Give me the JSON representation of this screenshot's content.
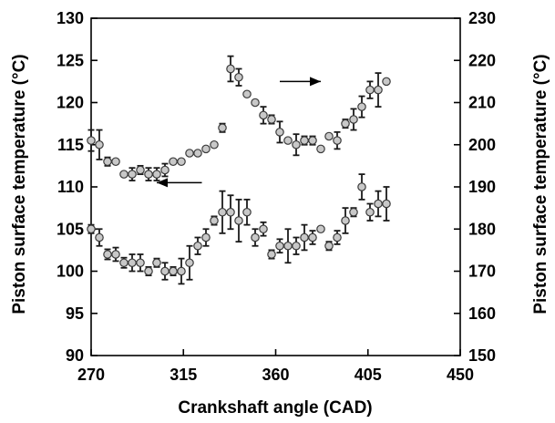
{
  "chart_data": {
    "type": "scatter",
    "title": "",
    "xlabel": "Crankshaft angle (CAD)",
    "ylabel_left": "Piston surface temperature (°C)",
    "ylabel_right": "Piston surface temperature (°C)",
    "xlim": [
      270,
      450
    ],
    "ylim_left": [
      90,
      130
    ],
    "ylim_right": [
      150,
      230
    ],
    "x_ticks": [
      "270",
      "315",
      "360",
      "405",
      "450"
    ],
    "y_ticks_left": [
      "90",
      "95",
      "100",
      "105",
      "110",
      "115",
      "120",
      "125",
      "130"
    ],
    "y_ticks_right": [
      "150",
      "160",
      "170",
      "180",
      "190",
      "200",
      "210",
      "220",
      "230"
    ],
    "grid": false,
    "marker": "circle",
    "colors": {
      "marker_fill": "#c8c8c8",
      "marker_edge": "#3a3a3a",
      "axis": "#000000",
      "errorbar": "#1a1a1a"
    },
    "annotations": [
      {
        "type": "arrow",
        "direction": "left",
        "axis": "left",
        "from": [
          324,
          110.5
        ],
        "to": [
          302,
          110.5
        ]
      },
      {
        "type": "arrow",
        "direction": "right",
        "axis": "right",
        "from": [
          362,
          215
        ],
        "to": [
          382,
          215
        ]
      }
    ],
    "series": [
      {
        "axis": "left",
        "points": [
          {
            "x": 270,
            "y": 105.0,
            "err": 0.5
          },
          {
            "x": 274,
            "y": 104.0,
            "err": 1.0
          },
          {
            "x": 278,
            "y": 102.0,
            "err": 0.6
          },
          {
            "x": 282,
            "y": 102.0,
            "err": 0.8
          },
          {
            "x": 286,
            "y": 101.0,
            "err": 0.6
          },
          {
            "x": 290,
            "y": 101.0,
            "err": 1.0
          },
          {
            "x": 294,
            "y": 101.0,
            "err": 1.0
          },
          {
            "x": 298,
            "y": 100.0,
            "err": 0.5
          },
          {
            "x": 302,
            "y": 101.0,
            "err": 0.5
          },
          {
            "x": 306,
            "y": 100.0,
            "err": 1.0
          },
          {
            "x": 310,
            "y": 100.0,
            "err": 0.5
          },
          {
            "x": 314,
            "y": 100.0,
            "err": 1.5
          },
          {
            "x": 318,
            "y": 101.0,
            "err": 2.0
          },
          {
            "x": 322,
            "y": 103.0,
            "err": 1.0
          },
          {
            "x": 326,
            "y": 104.0,
            "err": 1.0
          },
          {
            "x": 330,
            "y": 106.0,
            "err": 0.5
          },
          {
            "x": 334,
            "y": 107.0,
            "err": 2.5
          },
          {
            "x": 338,
            "y": 107.0,
            "err": 2.0
          },
          {
            "x": 342,
            "y": 106.0,
            "err": 2.5
          },
          {
            "x": 346,
            "y": 107.0,
            "err": 1.5
          },
          {
            "x": 350,
            "y": 104.0,
            "err": 1.0
          },
          {
            "x": 354,
            "y": 105.0,
            "err": 0.8
          },
          {
            "x": 358,
            "y": 102.0,
            "err": 0.5
          },
          {
            "x": 362,
            "y": 103.0,
            "err": 0.8
          },
          {
            "x": 366,
            "y": 103.0,
            "err": 2.0
          },
          {
            "x": 370,
            "y": 103.0,
            "err": 1.0
          },
          {
            "x": 374,
            "y": 104.0,
            "err": 1.5
          },
          {
            "x": 378,
            "y": 104.0,
            "err": 0.8
          },
          {
            "x": 382,
            "y": 105.0,
            "err": 0
          },
          {
            "x": 386,
            "y": 103.0,
            "err": 0.5
          },
          {
            "x": 390,
            "y": 104.0,
            "err": 0.8
          },
          {
            "x": 394,
            "y": 106.0,
            "err": 1.5
          },
          {
            "x": 398,
            "y": 107.0,
            "err": 0.5
          },
          {
            "x": 402,
            "y": 110.0,
            "err": 1.5
          },
          {
            "x": 406,
            "y": 107.0,
            "err": 1.0
          },
          {
            "x": 410,
            "y": 108.0,
            "err": 1.5
          },
          {
            "x": 414,
            "y": 108.0,
            "err": 2.0
          }
        ]
      },
      {
        "axis": "right",
        "points": [
          {
            "x": 270,
            "y": 201.0,
            "err": 2.5
          },
          {
            "x": 274,
            "y": 200.0,
            "err": 3.5
          },
          {
            "x": 278,
            "y": 196.0,
            "err": 1.0
          },
          {
            "x": 282,
            "y": 196.0,
            "err": 0
          },
          {
            "x": 286,
            "y": 193.0,
            "err": 0
          },
          {
            "x": 290,
            "y": 193.0,
            "err": 1.5
          },
          {
            "x": 294,
            "y": 194.0,
            "err": 1.0
          },
          {
            "x": 298,
            "y": 193.0,
            "err": 1.5
          },
          {
            "x": 302,
            "y": 193.0,
            "err": 1.5
          },
          {
            "x": 306,
            "y": 194.0,
            "err": 1.5
          },
          {
            "x": 310,
            "y": 196.0,
            "err": 0
          },
          {
            "x": 314,
            "y": 196.0,
            "err": 0
          },
          {
            "x": 318,
            "y": 198.0,
            "err": 0
          },
          {
            "x": 322,
            "y": 198.0,
            "err": 0
          },
          {
            "x": 326,
            "y": 199.0,
            "err": 0
          },
          {
            "x": 330,
            "y": 200.0,
            "err": 0
          },
          {
            "x": 334,
            "y": 204.0,
            "err": 1.0
          },
          {
            "x": 338,
            "y": 218.0,
            "err": 3.0
          },
          {
            "x": 342,
            "y": 216.0,
            "err": 2.0
          },
          {
            "x": 346,
            "y": 212.0,
            "err": 0
          },
          {
            "x": 350,
            "y": 210.0,
            "err": 0
          },
          {
            "x": 354,
            "y": 207.0,
            "err": 2.0
          },
          {
            "x": 358,
            "y": 206.0,
            "err": 1.0
          },
          {
            "x": 362,
            "y": 203.0,
            "err": 2.5
          },
          {
            "x": 366,
            "y": 201.0,
            "err": 0
          },
          {
            "x": 370,
            "y": 200.0,
            "err": 2.5
          },
          {
            "x": 374,
            "y": 201.0,
            "err": 1.0
          },
          {
            "x": 378,
            "y": 201.0,
            "err": 1.0
          },
          {
            "x": 382,
            "y": 199.0,
            "err": 0
          },
          {
            "x": 386,
            "y": 202.0,
            "err": 0
          },
          {
            "x": 390,
            "y": 201.0,
            "err": 2.0
          },
          {
            "x": 394,
            "y": 205.0,
            "err": 1.0
          },
          {
            "x": 398,
            "y": 206.0,
            "err": 2.5
          },
          {
            "x": 402,
            "y": 209.0,
            "err": 2.5
          },
          {
            "x": 406,
            "y": 213.0,
            "err": 2.0
          },
          {
            "x": 410,
            "y": 213.0,
            "err": 4.0
          },
          {
            "x": 414,
            "y": 215.0,
            "err": 0
          }
        ]
      }
    ]
  }
}
